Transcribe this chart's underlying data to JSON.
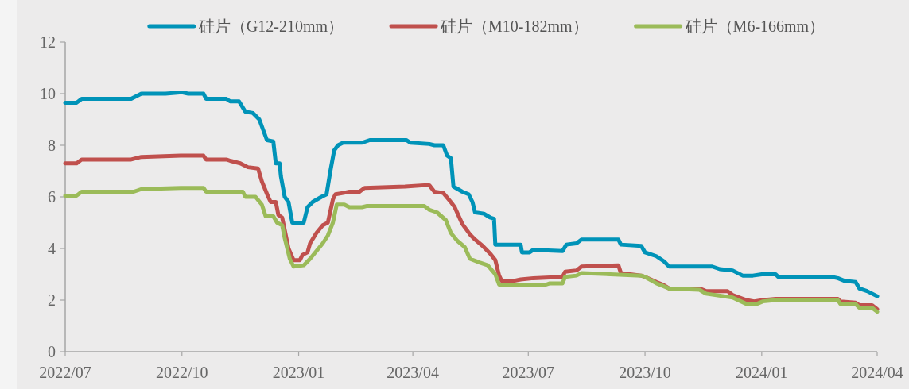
{
  "chart_data": {
    "type": "line",
    "legend": "top",
    "xlim": [
      "2022-07-01",
      "2024-04-01"
    ],
    "ylim": [
      0,
      12
    ],
    "yticks": [
      0,
      2,
      4,
      6,
      8,
      10,
      12
    ],
    "xticks": [
      {
        "value": "2022-07-01",
        "label": "2022/07"
      },
      {
        "value": "2022-10-01",
        "label": "2022/10"
      },
      {
        "value": "2023-01-01",
        "label": "2023/01"
      },
      {
        "value": "2023-04-01",
        "label": "2023/04"
      },
      {
        "value": "2023-07-01",
        "label": "2023/07"
      },
      {
        "value": "2023-10-01",
        "label": "2023/10"
      },
      {
        "value": "2024-01-01",
        "label": "2024/01"
      },
      {
        "value": "2024-04-01",
        "label": "2024/04"
      }
    ],
    "series": [
      {
        "name": "硅片（G12-210mm）",
        "color": "#0093b8",
        "x": [
          "2022-07-01",
          "2022-07-10",
          "2022-07-14",
          "2022-08-22",
          "2022-08-30",
          "2022-09-18",
          "2022-10-01",
          "2022-10-06",
          "2022-10-18",
          "2022-10-20",
          "2022-11-05",
          "2022-11-08",
          "2022-11-15",
          "2022-11-20",
          "2022-11-26",
          "2022-12-01",
          "2022-12-04",
          "2022-12-07",
          "2022-12-12",
          "2022-12-14",
          "2022-12-17",
          "2022-12-18",
          "2022-12-21",
          "2022-12-24",
          "2022-12-27",
          "2023-01-05",
          "2023-01-08",
          "2023-01-12",
          "2023-01-19",
          "2023-01-23",
          "2023-01-26",
          "2023-01-29",
          "2023-02-01",
          "2023-02-05",
          "2023-02-20",
          "2023-02-26",
          "2023-03-27",
          "2023-03-30",
          "2023-04-14",
          "2023-04-18",
          "2023-04-25",
          "2023-04-28",
          "2023-05-01",
          "2023-05-03",
          "2023-05-10",
          "2023-05-15",
          "2023-05-18",
          "2023-05-20",
          "2023-05-27",
          "2023-06-01",
          "2023-06-04",
          "2023-06-05",
          "2023-06-25",
          "2023-06-26",
          "2023-07-02",
          "2023-07-05",
          "2023-07-28",
          "2023-07-31",
          "2023-08-08",
          "2023-08-12",
          "2023-09-10",
          "2023-09-12",
          "2023-09-28",
          "2023-10-01",
          "2023-10-10",
          "2023-10-16",
          "2023-10-20",
          "2023-11-23",
          "2023-11-29",
          "2023-12-09",
          "2023-12-17",
          "2023-12-25",
          "2024-01-01",
          "2024-01-12",
          "2024-01-14",
          "2024-02-25",
          "2024-03-01",
          "2024-03-06",
          "2024-03-15",
          "2024-03-18",
          "2024-03-24",
          "2024-04-01"
        ],
        "values": [
          9.65,
          9.65,
          9.8,
          9.8,
          10.0,
          10.0,
          10.05,
          10.0,
          10.0,
          9.8,
          9.8,
          9.7,
          9.7,
          9.3,
          9.25,
          9.0,
          8.6,
          8.2,
          8.15,
          7.3,
          7.3,
          6.8,
          6.0,
          5.8,
          5.0,
          5.0,
          5.6,
          5.8,
          6.0,
          6.1,
          7.0,
          7.8,
          8.0,
          8.1,
          8.1,
          8.2,
          8.2,
          8.1,
          8.05,
          8.0,
          8.0,
          7.6,
          7.5,
          6.4,
          6.2,
          6.1,
          5.8,
          5.4,
          5.35,
          5.2,
          5.15,
          4.15,
          4.15,
          3.85,
          3.85,
          3.95,
          3.9,
          4.15,
          4.2,
          4.35,
          4.35,
          4.15,
          4.1,
          3.85,
          3.7,
          3.5,
          3.3,
          3.3,
          3.2,
          3.15,
          2.95,
          2.95,
          3.0,
          3.0,
          2.9,
          2.9,
          2.85,
          2.75,
          2.7,
          2.45,
          2.35,
          2.15
        ]
      },
      {
        "name": "硅片（M10-182mm）",
        "color": "#c0504d",
        "x": [
          "2022-07-01",
          "2022-07-10",
          "2022-07-14",
          "2022-08-22",
          "2022-08-30",
          "2022-09-30",
          "2022-10-18",
          "2022-10-20",
          "2022-11-05",
          "2022-11-08",
          "2022-11-16",
          "2022-11-22",
          "2022-11-30",
          "2022-12-03",
          "2022-12-08",
          "2022-12-10",
          "2022-12-14",
          "2022-12-16",
          "2022-12-19",
          "2022-12-24",
          "2022-12-28",
          "2023-01-02",
          "2023-01-04",
          "2023-01-08",
          "2023-01-10",
          "2023-01-15",
          "2023-01-20",
          "2023-01-24",
          "2023-01-28",
          "2023-01-30",
          "2023-02-05",
          "2023-02-10",
          "2023-02-18",
          "2023-02-22",
          "2023-03-26",
          "2023-04-10",
          "2023-04-14",
          "2023-04-18",
          "2023-04-25",
          "2023-05-01",
          "2023-05-04",
          "2023-05-10",
          "2023-05-16",
          "2023-05-20",
          "2023-05-26",
          "2023-06-01",
          "2023-06-05",
          "2023-06-08",
          "2023-06-10",
          "2023-06-20",
          "2023-06-25",
          "2023-07-05",
          "2023-07-28",
          "2023-07-30",
          "2023-08-08",
          "2023-08-12",
          "2023-09-10",
          "2023-09-12",
          "2023-09-28",
          "2023-10-01",
          "2023-10-10",
          "2023-10-15",
          "2023-10-20",
          "2023-11-13",
          "2023-11-18",
          "2023-12-05",
          "2023-12-09",
          "2023-12-20",
          "2023-12-26",
          "2024-01-02",
          "2024-01-12",
          "2024-03-01",
          "2024-03-03",
          "2024-03-15",
          "2024-03-18",
          "2024-03-28",
          "2024-04-01"
        ],
        "values": [
          7.3,
          7.3,
          7.45,
          7.45,
          7.55,
          7.6,
          7.6,
          7.45,
          7.45,
          7.4,
          7.3,
          7.15,
          7.1,
          6.6,
          6.0,
          5.8,
          5.8,
          5.3,
          5.2,
          4.0,
          3.55,
          3.55,
          3.75,
          3.85,
          4.2,
          4.6,
          4.9,
          5.0,
          5.9,
          6.1,
          6.15,
          6.2,
          6.2,
          6.35,
          6.4,
          6.45,
          6.45,
          6.2,
          6.15,
          5.8,
          5.6,
          4.95,
          4.55,
          4.35,
          4.1,
          3.8,
          3.55,
          2.95,
          2.75,
          2.75,
          2.8,
          2.85,
          2.9,
          3.1,
          3.15,
          3.3,
          3.35,
          3.05,
          2.95,
          2.9,
          2.7,
          2.6,
          2.45,
          2.45,
          2.35,
          2.35,
          2.2,
          2.0,
          1.95,
          2.0,
          2.05,
          2.05,
          1.95,
          1.9,
          1.8,
          1.8,
          1.65
        ]
      },
      {
        "name": "硅片（M6-166mm）",
        "color": "#9bbb59",
        "x": [
          "2022-07-01",
          "2022-07-10",
          "2022-07-14",
          "2022-08-24",
          "2022-08-30",
          "2022-09-30",
          "2022-10-18",
          "2022-10-20",
          "2022-11-18",
          "2022-11-20",
          "2022-11-28",
          "2022-12-03",
          "2022-12-06",
          "2022-12-12",
          "2022-12-15",
          "2022-12-19",
          "2022-12-21",
          "2022-12-25",
          "2022-12-28",
          "2023-01-05",
          "2023-01-10",
          "2023-01-20",
          "2023-01-24",
          "2023-01-28",
          "2023-01-31",
          "2023-02-06",
          "2023-02-10",
          "2023-02-20",
          "2023-02-24",
          "2023-04-10",
          "2023-04-14",
          "2023-04-20",
          "2023-04-27",
          "2023-05-01",
          "2023-05-06",
          "2023-05-12",
          "2023-05-16",
          "2023-05-24",
          "2023-05-30",
          "2023-06-05",
          "2023-06-08",
          "2023-07-15",
          "2023-07-18",
          "2023-07-28",
          "2023-07-30",
          "2023-08-08",
          "2023-08-12",
          "2023-09-28",
          "2023-10-01",
          "2023-10-10",
          "2023-10-20",
          "2023-11-13",
          "2023-11-18",
          "2023-12-09",
          "2023-12-20",
          "2023-12-28",
          "2024-01-02",
          "2024-01-12",
          "2024-03-01",
          "2024-03-03",
          "2024-03-15",
          "2024-03-18",
          "2024-03-28",
          "2024-04-01"
        ],
        "values": [
          6.05,
          6.05,
          6.2,
          6.2,
          6.3,
          6.35,
          6.35,
          6.2,
          6.2,
          6.0,
          6.0,
          5.7,
          5.25,
          5.25,
          5.0,
          4.9,
          4.4,
          3.6,
          3.3,
          3.35,
          3.6,
          4.2,
          4.5,
          5.0,
          5.7,
          5.7,
          5.6,
          5.6,
          5.65,
          5.65,
          5.5,
          5.4,
          5.1,
          4.6,
          4.3,
          4.05,
          3.6,
          3.45,
          3.35,
          3.0,
          2.6,
          2.6,
          2.65,
          2.65,
          2.9,
          2.95,
          3.05,
          2.95,
          2.9,
          2.65,
          2.45,
          2.4,
          2.25,
          2.1,
          1.85,
          1.85,
          1.95,
          2.0,
          2.0,
          1.85,
          1.85,
          1.7,
          1.7,
          1.55
        ]
      }
    ]
  }
}
